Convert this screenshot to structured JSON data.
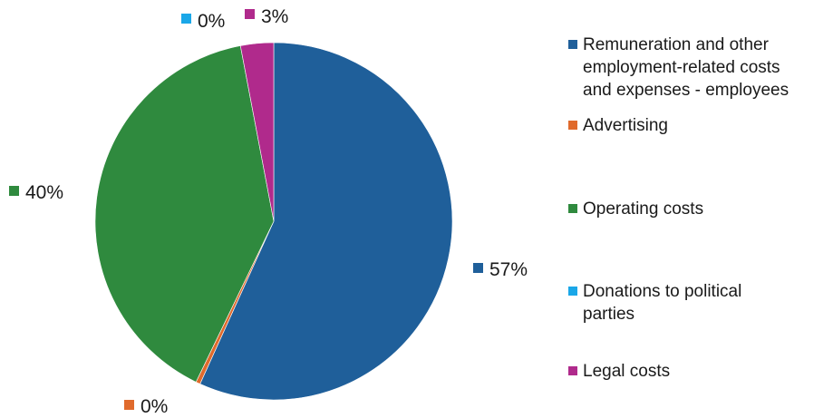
{
  "chart_data": {
    "type": "pie",
    "title": "",
    "categories": [
      "Remuneration  and other employment-related costs and expenses - employees",
      "Advertising",
      "Operating costs",
      "Donations to political parties",
      "Legal costs"
    ],
    "values": [
      57,
      0.4,
      40,
      0,
      3
    ],
    "data_labels": [
      "57%",
      "0%",
      "40%",
      "0%",
      "3%"
    ],
    "colors": [
      "#1f5f9a",
      "#e06a2c",
      "#2f8a3e",
      "#1aa7e8",
      "#b02a8c"
    ],
    "legend_position": "right",
    "legend_lines": [
      "Remuneration  and other\nemployment-related costs\nand expenses - employees",
      "Advertising",
      "Operating costs",
      "Donations to political\nparties",
      "Legal costs"
    ]
  }
}
